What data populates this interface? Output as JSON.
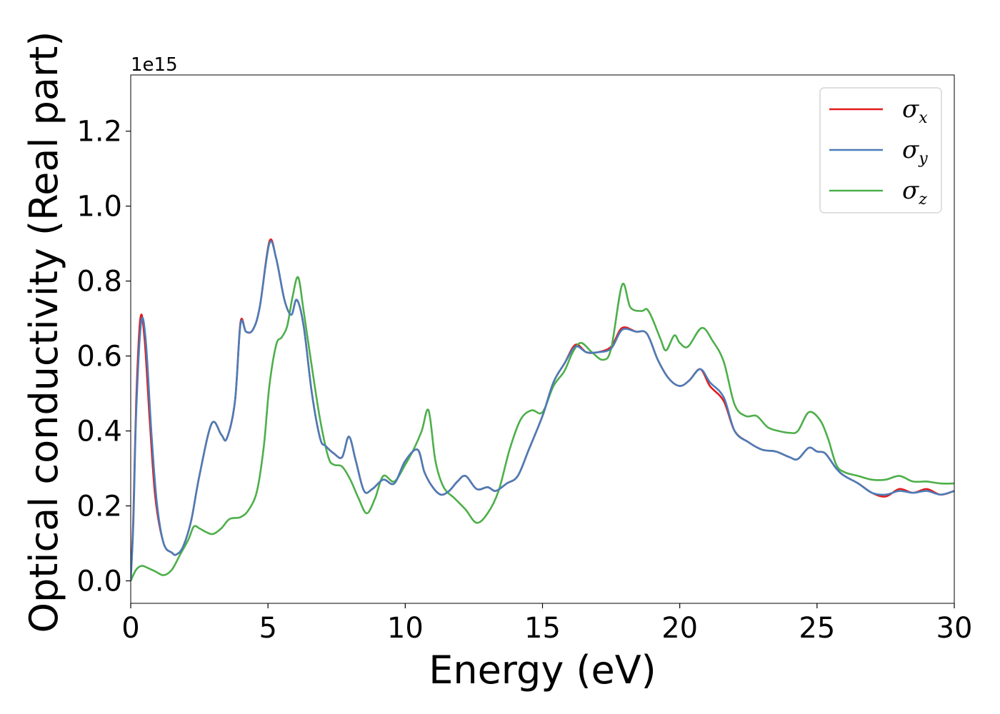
{
  "chart_data": {
    "type": "line",
    "xlabel": "Energy (eV)",
    "ylabel": "Optical conductivity (Real part)",
    "y_offset_label": "1e15",
    "y_multiplier": 1000000000000000.0,
    "xlim": [
      0,
      30
    ],
    "ylim": [
      -0.06,
      1.35
    ],
    "xticks": [
      0,
      5,
      10,
      15,
      20,
      25,
      30
    ],
    "xtick_labels": [
      "0",
      "5",
      "10",
      "15",
      "20",
      "25",
      "30"
    ],
    "yticks": [
      0.0,
      0.2,
      0.4,
      0.6,
      0.8,
      1.0,
      1.2
    ],
    "ytick_labels": [
      "0.0",
      "0.2",
      "0.4",
      "0.6",
      "0.8",
      "1.0",
      "1.2"
    ],
    "grid": false,
    "legend_position": "top-right",
    "series": [
      {
        "name": "σx",
        "symbol": "σ",
        "subscript": "x",
        "color": "#e41a1c",
        "x": [
          0,
          0.1,
          0.2,
          0.35,
          0.5,
          0.7,
          0.9,
          1.2,
          1.5,
          1.65,
          1.9,
          2.2,
          2.5,
          2.95,
          3.3,
          3.5,
          3.8,
          4.0,
          4.2,
          4.45,
          4.7,
          5.05,
          5.3,
          5.6,
          5.85,
          6.05,
          6.3,
          6.6,
          6.9,
          7.1,
          7.4,
          7.7,
          7.95,
          8.2,
          8.5,
          8.8,
          9.2,
          9.6,
          10.0,
          10.45,
          10.7,
          11.0,
          11.3,
          11.6,
          11.9,
          12.2,
          12.6,
          13.0,
          13.3,
          13.7,
          14.1,
          14.5,
          15.0,
          15.4,
          15.8,
          16.2,
          16.6,
          17.0,
          17.5,
          17.9,
          18.4,
          18.8,
          19.2,
          19.6,
          20.0,
          20.35,
          20.75,
          21.1,
          21.6,
          22.0,
          22.5,
          23.0,
          23.5,
          24.0,
          24.3,
          24.7,
          25.0,
          25.3,
          25.7,
          26.0,
          26.5,
          27.0,
          27.5,
          28.0,
          28.5,
          29.0,
          29.5,
          30.0
        ],
        "y": [
          0.0,
          0.18,
          0.48,
          0.7,
          0.65,
          0.42,
          0.22,
          0.1,
          0.075,
          0.07,
          0.09,
          0.16,
          0.28,
          0.42,
          0.39,
          0.38,
          0.48,
          0.69,
          0.665,
          0.67,
          0.73,
          0.905,
          0.86,
          0.75,
          0.71,
          0.75,
          0.68,
          0.5,
          0.38,
          0.36,
          0.34,
          0.33,
          0.385,
          0.32,
          0.24,
          0.245,
          0.27,
          0.26,
          0.32,
          0.35,
          0.29,
          0.25,
          0.23,
          0.24,
          0.265,
          0.28,
          0.245,
          0.25,
          0.24,
          0.26,
          0.28,
          0.35,
          0.44,
          0.53,
          0.58,
          0.63,
          0.61,
          0.61,
          0.625,
          0.675,
          0.665,
          0.66,
          0.59,
          0.54,
          0.52,
          0.535,
          0.565,
          0.52,
          0.48,
          0.4,
          0.37,
          0.35,
          0.345,
          0.33,
          0.325,
          0.355,
          0.345,
          0.34,
          0.3,
          0.28,
          0.26,
          0.235,
          0.225,
          0.245,
          0.235,
          0.245,
          0.23,
          0.24
        ]
      },
      {
        "name": "σy",
        "symbol": "σ",
        "subscript": "y",
        "color": "#4a7db8",
        "x": [
          0,
          0.1,
          0.2,
          0.38,
          0.55,
          0.75,
          0.95,
          1.2,
          1.5,
          1.65,
          1.9,
          2.2,
          2.5,
          2.95,
          3.3,
          3.5,
          3.8,
          4.0,
          4.2,
          4.45,
          4.7,
          5.05,
          5.3,
          5.6,
          5.85,
          6.05,
          6.3,
          6.6,
          6.9,
          7.1,
          7.4,
          7.7,
          7.95,
          8.2,
          8.5,
          8.8,
          9.2,
          9.6,
          10.0,
          10.45,
          10.7,
          11.0,
          11.3,
          11.6,
          11.9,
          12.2,
          12.6,
          13.0,
          13.3,
          13.7,
          14.1,
          14.5,
          15.0,
          15.4,
          15.8,
          16.2,
          16.6,
          17.0,
          17.5,
          17.9,
          18.4,
          18.8,
          19.2,
          19.6,
          20.0,
          20.35,
          20.75,
          21.1,
          21.6,
          22.0,
          22.5,
          23.0,
          23.5,
          24.0,
          24.3,
          24.7,
          25.0,
          25.3,
          25.7,
          26.0,
          26.5,
          27.0,
          27.5,
          28.0,
          28.5,
          29.0,
          29.5,
          30.0
        ],
        "y": [
          0.0,
          0.16,
          0.45,
          0.69,
          0.64,
          0.4,
          0.21,
          0.1,
          0.075,
          0.07,
          0.09,
          0.16,
          0.28,
          0.42,
          0.39,
          0.38,
          0.48,
          0.685,
          0.665,
          0.67,
          0.73,
          0.9,
          0.86,
          0.75,
          0.71,
          0.75,
          0.68,
          0.5,
          0.38,
          0.36,
          0.34,
          0.33,
          0.385,
          0.32,
          0.24,
          0.245,
          0.27,
          0.26,
          0.32,
          0.35,
          0.29,
          0.25,
          0.23,
          0.24,
          0.265,
          0.28,
          0.245,
          0.25,
          0.24,
          0.26,
          0.28,
          0.35,
          0.44,
          0.53,
          0.58,
          0.625,
          0.61,
          0.61,
          0.62,
          0.67,
          0.665,
          0.66,
          0.59,
          0.54,
          0.52,
          0.535,
          0.565,
          0.53,
          0.49,
          0.4,
          0.37,
          0.35,
          0.345,
          0.33,
          0.325,
          0.355,
          0.345,
          0.34,
          0.3,
          0.28,
          0.26,
          0.235,
          0.23,
          0.24,
          0.235,
          0.24,
          0.23,
          0.24
        ]
      },
      {
        "name": "σz",
        "symbol": "σ",
        "subscript": "z",
        "color": "#4daf4a",
        "x": [
          0,
          0.2,
          0.4,
          0.6,
          0.9,
          1.2,
          1.5,
          1.8,
          2.1,
          2.3,
          2.5,
          2.75,
          3.0,
          3.3,
          3.6,
          4.0,
          4.3,
          4.6,
          4.85,
          5.05,
          5.3,
          5.5,
          5.7,
          5.9,
          6.1,
          6.3,
          6.6,
          6.9,
          7.2,
          7.4,
          7.7,
          8.0,
          8.3,
          8.6,
          8.9,
          9.2,
          9.6,
          10.0,
          10.3,
          10.6,
          10.85,
          11.1,
          11.4,
          11.8,
          12.2,
          12.6,
          13.0,
          13.4,
          13.8,
          14.2,
          14.6,
          15.0,
          15.4,
          15.8,
          16.1,
          16.4,
          16.8,
          17.2,
          17.5,
          17.9,
          18.2,
          18.6,
          18.8,
          19.0,
          19.3,
          19.5,
          19.8,
          20.0,
          20.3,
          20.8,
          21.2,
          21.6,
          22.0,
          22.4,
          22.8,
          23.2,
          23.6,
          24.0,
          24.3,
          24.7,
          25.1,
          25.4,
          25.7,
          26.0,
          26.5,
          27.0,
          27.5,
          28.0,
          28.5,
          29.0,
          29.5,
          30.0
        ],
        "y": [
          0.0,
          0.03,
          0.04,
          0.035,
          0.025,
          0.015,
          0.03,
          0.07,
          0.11,
          0.145,
          0.14,
          0.13,
          0.125,
          0.14,
          0.165,
          0.17,
          0.19,
          0.24,
          0.36,
          0.52,
          0.63,
          0.65,
          0.68,
          0.76,
          0.81,
          0.72,
          0.57,
          0.43,
          0.33,
          0.31,
          0.305,
          0.27,
          0.22,
          0.18,
          0.22,
          0.28,
          0.265,
          0.31,
          0.35,
          0.4,
          0.455,
          0.32,
          0.25,
          0.22,
          0.19,
          0.155,
          0.18,
          0.24,
          0.35,
          0.43,
          0.455,
          0.45,
          0.52,
          0.56,
          0.61,
          0.635,
          0.61,
          0.59,
          0.62,
          0.79,
          0.73,
          0.72,
          0.725,
          0.7,
          0.645,
          0.615,
          0.655,
          0.635,
          0.625,
          0.675,
          0.64,
          0.585,
          0.47,
          0.44,
          0.44,
          0.41,
          0.4,
          0.395,
          0.4,
          0.45,
          0.43,
          0.38,
          0.31,
          0.29,
          0.28,
          0.27,
          0.27,
          0.28,
          0.265,
          0.265,
          0.26,
          0.26
        ]
      }
    ]
  }
}
